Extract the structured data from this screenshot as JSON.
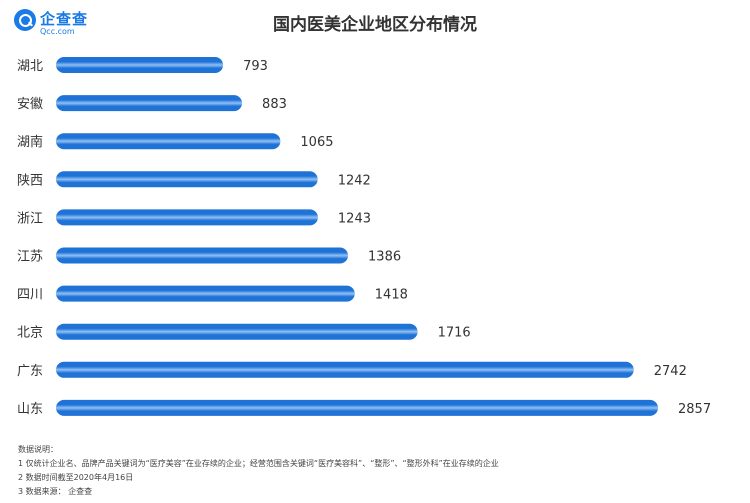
{
  "logo": {
    "name": "企查查",
    "domain": "Qcc.com"
  },
  "chart_data": {
    "type": "bar",
    "orientation": "horizontal",
    "title": "国内医美企业地区分布情况",
    "categories": [
      "湖北",
      "安徽",
      "湖南",
      "陕西",
      "浙江",
      "江苏",
      "四川",
      "北京",
      "广东",
      "山东"
    ],
    "values": [
      793,
      883,
      1065,
      1242,
      1243,
      1386,
      1418,
      1716,
      2742,
      2857
    ],
    "xlim": [
      0,
      2857
    ],
    "grid": false,
    "legend": "none",
    "bar_color": "#1f72d6",
    "bar_highlight": "#8fc0f4"
  },
  "notes": {
    "heading": "数据说明：",
    "line1": "1 仅统计企业名、品牌产品关键词为“医疗美容”在业存续的企业；经营范围含关键词“医疗美容科”、“整形”、“整形外科”在业存续的企业",
    "line2": "2 数据时间截至2020年4月16日",
    "line3": "3 数据来源：  企查查"
  }
}
